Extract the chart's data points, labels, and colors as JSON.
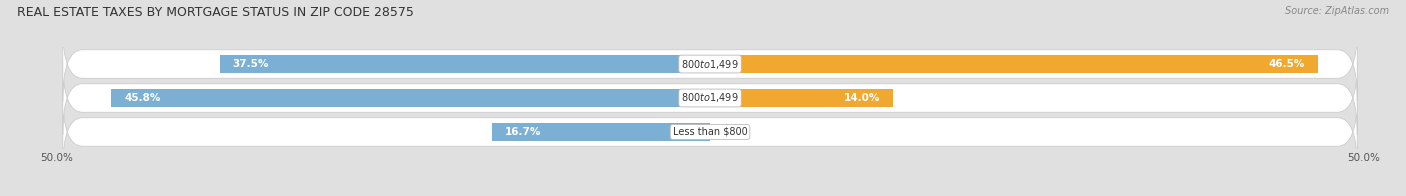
{
  "title": "REAL ESTATE TAXES BY MORTGAGE STATUS IN ZIP CODE 28575",
  "source": "Source: ZipAtlas.com",
  "rows": [
    {
      "category": "Less than $800",
      "without": 16.7,
      "with": 0.0
    },
    {
      "category": "$800 to $1,499",
      "without": 45.8,
      "with": 14.0
    },
    {
      "category": "$800 to $1,499",
      "without": 37.5,
      "with": 46.5
    }
  ],
  "blue_color": "#7BAFD4",
  "orange_color": "#F0A830",
  "row_bg_color": "#EFEFEF",
  "row_border_color": "#DDDDDD",
  "fig_bg_color": "#E0E0E0",
  "xlim": [
    -50,
    50
  ],
  "title_fontsize": 9,
  "source_fontsize": 7,
  "bar_label_fontsize": 7.5,
  "category_fontsize": 7,
  "legend_fontsize": 7.5,
  "bar_height": 0.52,
  "figsize": [
    14.06,
    1.96
  ],
  "dpi": 100
}
